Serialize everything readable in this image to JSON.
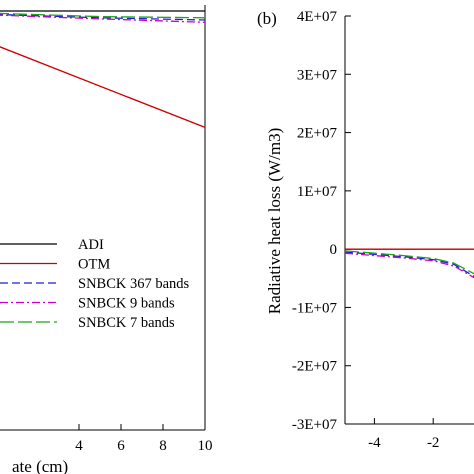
{
  "chart_data": [
    {
      "type": "line",
      "panel": "",
      "title": "",
      "xlabel": "ate (cm)",
      "ylabel": "",
      "xlim": [
        0,
        10
      ],
      "x_ticks": [
        4,
        6,
        8,
        10
      ],
      "x_tick_labels": [
        "4",
        "6",
        "8",
        "10"
      ],
      "grid": false,
      "legend": {
        "placement": "bottom-right",
        "entries": [
          "ADI",
          "OTM",
          "SNBCK 367 bands",
          "SNBCK 9 bands",
          "SNBCK 7 bands"
        ]
      },
      "series": [
        {
          "name": "ADI",
          "color": "#000000",
          "dash": "solid",
          "x": [
            0,
            10
          ],
          "y": [
            0.0,
            0.0
          ]
        },
        {
          "name": "OTM",
          "color": "#cc0000",
          "dash": "solid",
          "x": [
            0,
            10
          ],
          "y": [
            -0.3,
            -1.03
          ]
        },
        {
          "name": "SNBCK 367 bands",
          "color": "#1f1fd6",
          "dash": "dashed",
          "x": [
            0,
            5,
            10
          ],
          "y": [
            -0.03,
            -0.06,
            -0.08
          ]
        },
        {
          "name": "SNBCK 9 bands",
          "color": "#cc00cc",
          "dash": "dashdot",
          "x": [
            0,
            5,
            10
          ],
          "y": [
            -0.035,
            -0.07,
            -0.1
          ]
        },
        {
          "name": "SNBCK 7 bands",
          "color": "#1aa21a",
          "dash": "longdash",
          "x": [
            0,
            5,
            10
          ],
          "y": [
            -0.02,
            -0.05,
            -0.06
          ]
        }
      ]
    },
    {
      "type": "line",
      "panel": "(b)",
      "title": "",
      "xlabel": "",
      "ylabel": "Radiative heat loss (W/m3)",
      "xlim": [
        -5,
        0
      ],
      "ylim": [
        -30000000,
        40000000
      ],
      "x_ticks": [
        -4,
        -2
      ],
      "x_tick_labels": [
        "-4",
        "-2"
      ],
      "y_ticks": [
        40000000,
        30000000,
        20000000,
        10000000,
        0,
        -10000000,
        -20000000,
        -30000000
      ],
      "y_tick_labels": [
        "4E+07",
        "3E+07",
        "2E+07",
        "1E+07",
        "0",
        "-1E+07",
        "-2E+07",
        "-3E+07"
      ],
      "grid": false,
      "series": [
        {
          "name": "ADI",
          "color": "#000000",
          "dash": "solid",
          "x": [
            -5,
            -0.5
          ],
          "y": [
            0,
            0
          ]
        },
        {
          "name": "OTM",
          "color": "#cc0000",
          "dash": "solid",
          "x": [
            -5,
            -0.5
          ],
          "y": [
            0,
            0
          ]
        },
        {
          "name": "SNBCK 367 bands",
          "color": "#1f1fd6",
          "dash": "dashed",
          "x": [
            -5,
            -4,
            -3,
            -2,
            -1.3,
            -0.5
          ],
          "y": [
            -500000,
            -900000,
            -1300000,
            -1800000,
            -2600000,
            -5000000
          ]
        },
        {
          "name": "SNBCK 9 bands",
          "color": "#cc00cc",
          "dash": "dashdot",
          "x": [
            -5,
            -4,
            -3,
            -2,
            -1.3,
            -0.5
          ],
          "y": [
            -700000,
            -1100000,
            -1500000,
            -2000000,
            -2900000,
            -5200000
          ]
        },
        {
          "name": "SNBCK 7 bands",
          "color": "#1aa21a",
          "dash": "longdash",
          "x": [
            -5,
            -4,
            -3,
            -2,
            -1.3,
            -0.5
          ],
          "y": [
            -300000,
            -700000,
            -1100000,
            -1600000,
            -2400000,
            -4500000
          ]
        }
      ]
    }
  ]
}
